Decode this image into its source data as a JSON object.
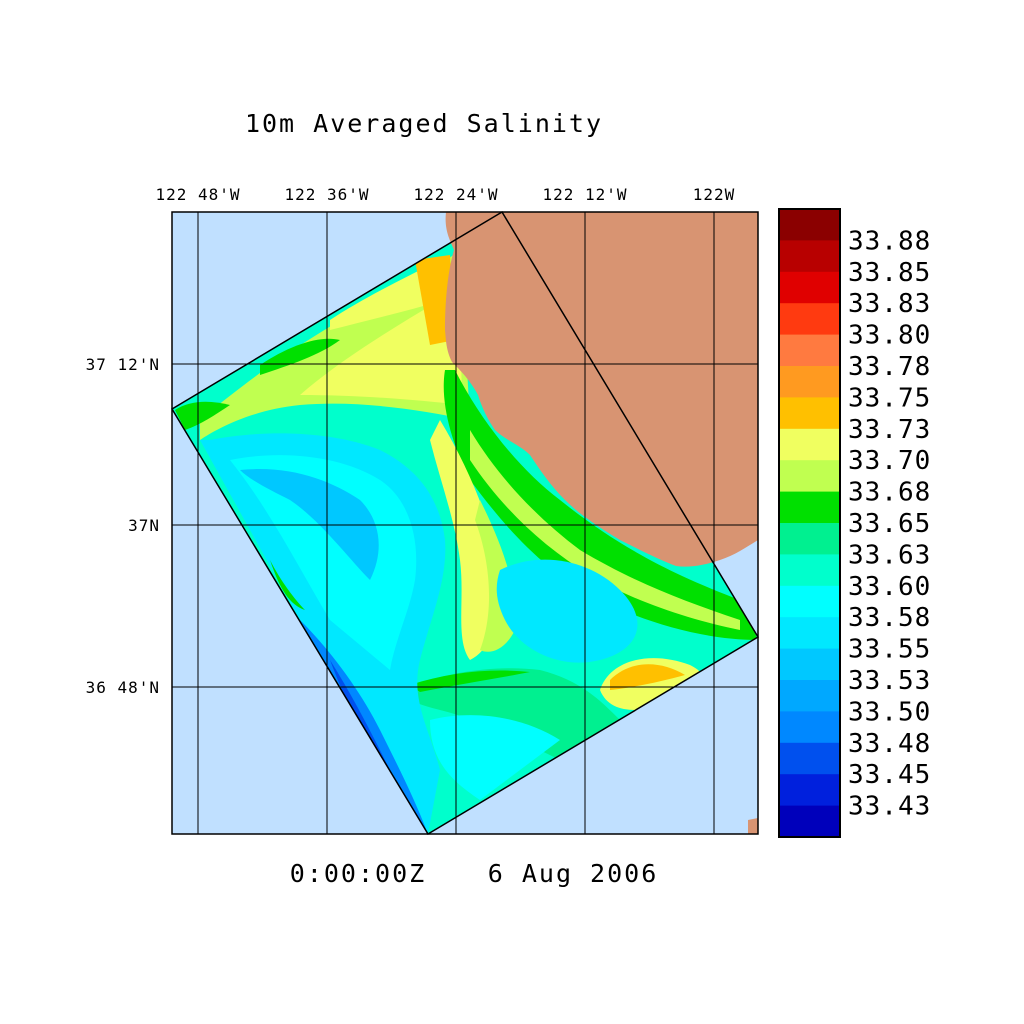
{
  "title": "10m Averaged Salinity",
  "timestamp": {
    "time": "0:00:00Z",
    "date": "6 Aug 2006"
  },
  "lon_ticks": [
    "122 48'W",
    "122 36'W",
    "122 24'W",
    "122 12'W",
    "122W"
  ],
  "lat_ticks": [
    "37 12'N",
    "37N",
    "36 48'N"
  ],
  "colorbar": {
    "labels": [
      "33.88",
      "33.85",
      "33.83",
      "33.80",
      "33.78",
      "33.75",
      "33.73",
      "33.70",
      "33.68",
      "33.65",
      "33.63",
      "33.60",
      "33.58",
      "33.55",
      "33.53",
      "33.50",
      "33.48",
      "33.45",
      "33.43"
    ],
    "colors": [
      "#8b0000",
      "#b80000",
      "#e00000",
      "#ff3a10",
      "#ff7a40",
      "#ff9a20",
      "#ffc000",
      "#f0ff60",
      "#c0ff50",
      "#00e000",
      "#00f090",
      "#00ffcc",
      "#00ffff",
      "#00e8ff",
      "#00c8ff",
      "#00a8ff",
      "#0088ff",
      "#0050ee",
      "#0020dd",
      "#0000bb"
    ]
  },
  "map": {
    "ocean_color": "#c0e0ff",
    "land_color": "#d89472",
    "grid": true,
    "model_domain": "rotated rectangle"
  }
}
